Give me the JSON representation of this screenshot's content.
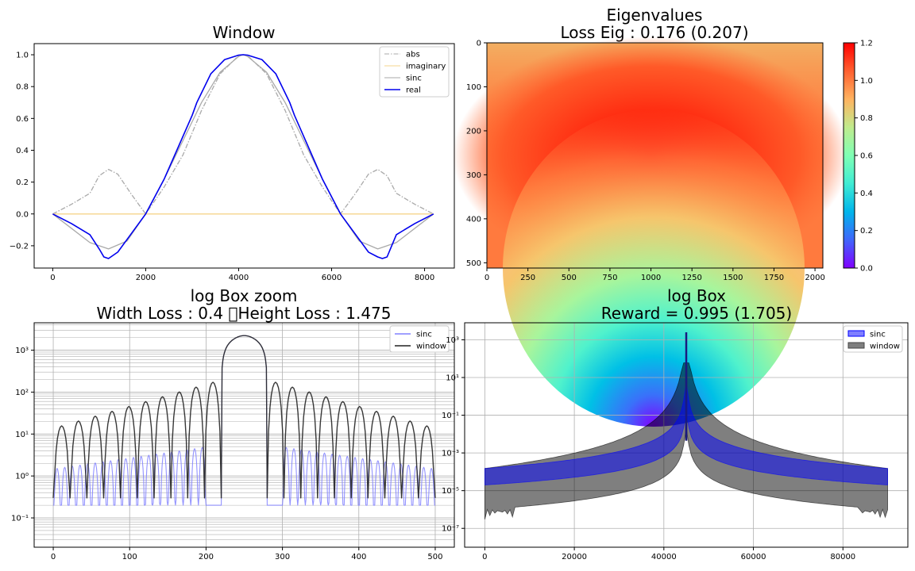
{
  "chart_data": [
    {
      "type": "line",
      "title": "Window",
      "xlim": [
        -400,
        8640
      ],
      "ylim": [
        -0.34,
        1.07
      ],
      "x_ticks": [
        0,
        2000,
        4000,
        6000,
        8000
      ],
      "x_tick_labels": [
        "0",
        "2000",
        "4000",
        "6000",
        "8000"
      ],
      "y_ticks": [
        -0.2,
        0.0,
        0.2,
        0.4,
        0.6,
        0.8,
        1.0
      ],
      "y_tick_labels": [
        "−0.2",
        "0.0",
        "0.2",
        "0.4",
        "0.6",
        "0.8",
        "1.0"
      ],
      "legend_position": "top-right",
      "series": [
        {
          "name": "abs",
          "color": "#aaaaaa",
          "style": "dashdot",
          "x": [
            0,
            400,
            800,
            1000,
            1200,
            1400,
            1700,
            2000,
            2400,
            2800,
            3200,
            3600,
            4000,
            4096,
            4192,
            4600,
            5000,
            5400,
            5800,
            6192,
            6492,
            6792,
            6992,
            7192,
            7392,
            7792,
            8192
          ],
          "y": [
            0,
            0.06,
            0.13,
            0.24,
            0.28,
            0.25,
            0.12,
            0.0,
            0.17,
            0.37,
            0.65,
            0.88,
            0.995,
            1.0,
            0.995,
            0.88,
            0.65,
            0.37,
            0.17,
            0.0,
            0.12,
            0.25,
            0.28,
            0.24,
            0.13,
            0.06,
            0
          ]
        },
        {
          "name": "imaginary",
          "color": "#f5d58c",
          "style": "solid",
          "x": [
            0,
            8192
          ],
          "y": [
            0,
            0
          ]
        },
        {
          "name": "sinc",
          "color": "#aaaaaa",
          "style": "solid",
          "x": [
            0,
            400,
            800,
            1200,
            1600,
            2000,
            2400,
            2800,
            3200,
            3600,
            4000,
            4096,
            4192,
            4600,
            5000,
            5400,
            5800,
            6192,
            6592,
            6992,
            7392,
            7792,
            8192
          ],
          "y": [
            0,
            -0.09,
            -0.18,
            -0.22,
            -0.17,
            0.0,
            0.22,
            0.46,
            0.7,
            0.89,
            0.99,
            1.0,
            0.99,
            0.89,
            0.7,
            0.46,
            0.22,
            0.0,
            -0.17,
            -0.22,
            -0.18,
            -0.09,
            0
          ]
        },
        {
          "name": "real",
          "color": "#0000ee",
          "style": "solid",
          "x": [
            0,
            400,
            800,
            1000,
            1100,
            1200,
            1400,
            1700,
            2000,
            2400,
            2700,
            3000,
            3100,
            3400,
            3700,
            4000,
            4096,
            4192,
            4500,
            4800,
            5100,
            5200,
            5500,
            5800,
            6192,
            6492,
            6792,
            6992,
            7092,
            7192,
            7392,
            7792,
            8192
          ],
          "y": [
            0,
            -0.06,
            -0.13,
            -0.22,
            -0.27,
            -0.28,
            -0.24,
            -0.12,
            0.0,
            0.22,
            0.42,
            0.62,
            0.7,
            0.88,
            0.97,
            0.998,
            1.0,
            0.998,
            0.97,
            0.88,
            0.7,
            0.62,
            0.42,
            0.22,
            0.0,
            -0.12,
            -0.24,
            -0.27,
            -0.28,
            -0.27,
            -0.13,
            -0.06,
            0
          ]
        }
      ]
    },
    {
      "type": "heatmap",
      "title": "Eigenvalues\nLoss Eig : 0.176 (0.207)",
      "x_range": [
        0,
        2048
      ],
      "y_range": [
        0,
        512
      ],
      "x_ticks": [
        0,
        250,
        500,
        750,
        1000,
        1250,
        1500,
        1750,
        2000
      ],
      "x_tick_labels": [
        "0",
        "250",
        "500",
        "750",
        "1000",
        "1250",
        "1500",
        "1750",
        "2000"
      ],
      "y_ticks": [
        0,
        100,
        200,
        300,
        400,
        500
      ],
      "y_tick_labels": [
        "0",
        "100",
        "200",
        "300",
        "400",
        "500"
      ],
      "colormap": "rainbow",
      "colorbar_range": [
        0.0,
        1.2
      ],
      "colorbar_ticks": [
        0.0,
        0.2,
        0.4,
        0.6,
        0.8,
        1.0,
        1.2
      ],
      "colorbar_tick_labels": [
        "0.0",
        "0.2",
        "0.4",
        "0.6",
        "0.8",
        "1.0",
        "1.2"
      ],
      "features": {
        "max_value": 1.2,
        "max_at": [
          1024,
          256
        ],
        "min_value": 0.0,
        "min_at": [
          1024,
          512
        ],
        "edge_value": 0.95
      }
    },
    {
      "type": "line",
      "title": "log Box zoom\nWidth Loss : 0.4 \u0000Height Loss : 1.475",
      "yscale": "log",
      "xlim": [
        -25,
        525
      ],
      "ylim": [
        0.02,
        4500
      ],
      "grid": true,
      "x_ticks": [
        0,
        100,
        200,
        300,
        400,
        500
      ],
      "x_tick_labels": [
        "0",
        "100",
        "200",
        "300",
        "400",
        "500"
      ],
      "y_ticks": [
        0.1,
        1,
        10,
        100,
        1000
      ],
      "y_tick_labels": [
        "10⁻¹",
        "10⁰",
        "10¹",
        "10²",
        "10³"
      ],
      "legend_position": "top-right",
      "series": [
        {
          "name": "sinc",
          "color": "#8080ff",
          "spec": {
            "x0": 0,
            "x1": 200,
            "x2": 300,
            "x3": 500,
            "period": 10,
            "peak_edge": 1.5,
            "peak_inner": 5,
            "min": 0.2,
            "main_start": 220,
            "main_end": 280,
            "main_peak": 2200
          }
        },
        {
          "name": "window",
          "color": "#222222",
          "spec": {
            "x0": 0,
            "x1": 220,
            "x2": 280,
            "x3": 500,
            "period": 21,
            "peak_edge": 14,
            "peak_inner": 200,
            "min": 0.3,
            "main_start": 220,
            "main_end": 280,
            "main_peak": 2200
          }
        }
      ]
    },
    {
      "type": "area",
      "title": "log Box\nReward = 0.995 (1.705)",
      "yscale": "log",
      "xlim": [
        -4500,
        94500
      ],
      "ylim": [
        1e-08,
        8000
      ],
      "grid": true,
      "x_ticks": [
        0,
        20000,
        40000,
        60000,
        80000
      ],
      "x_tick_labels": [
        "0",
        "20000",
        "40000",
        "60000",
        "80000"
      ],
      "y_ticks": [
        1e-07,
        1e-05,
        0.001,
        0.1,
        10,
        1000
      ],
      "y_tick_labels": [
        "10⁻⁷",
        "10⁻⁵",
        "10⁻³",
        "10⁻¹",
        "10¹",
        "10³"
      ],
      "legend_position": "top-right",
      "series": [
        {
          "name": "sinc",
          "color": "#0000ff",
          "spec": {
            "x0": 0,
            "x1": 90000,
            "center": 45000,
            "top_edge": 0.00015,
            "bottom_edge": 2e-05,
            "peak": 2500
          }
        },
        {
          "name": "window",
          "color": "#000000",
          "spec": {
            "x0": 0,
            "x1": 90000,
            "center": 45000,
            "top_edge": 0.00015,
            "bottom_edge": 1e-06,
            "peak": 60
          }
        }
      ]
    }
  ]
}
